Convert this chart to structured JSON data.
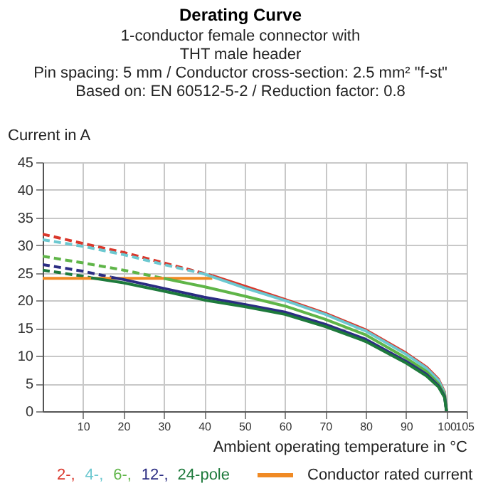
{
  "chart_data": {
    "type": "line",
    "title": "Derating Curve",
    "subtitle": [
      "1-conductor female connector with",
      "THT male header",
      "Pin spacing: 5 mm / Conductor cross-section: 2.5 mm² \"f-st\"",
      "Based on: EN 60512-5-2 / Reduction factor: 0.8"
    ],
    "xlabel": "Ambient operating temperature in °C",
    "ylabel": "Current in A",
    "xlim": [
      0,
      105
    ],
    "xticks": [
      10,
      20,
      30,
      40,
      50,
      60,
      70,
      80,
      90,
      100,
      105
    ],
    "ylim": [
      0,
      45
    ],
    "yticks": [
      0,
      5,
      10,
      15,
      20,
      25,
      30,
      35,
      40,
      45
    ],
    "grid": true,
    "legend": "bottom",
    "marker": "none",
    "series": [
      {
        "color": "#d9372b",
        "line_style": "dashed",
        "x": [
          0,
          10,
          20,
          30,
          42
        ],
        "values": [
          32,
          30.3,
          28.7,
          26.8,
          24.5
        ]
      },
      {
        "color": "#6cc8d0",
        "line_style": "dashed",
        "x": [
          0,
          10,
          20,
          30,
          40
        ],
        "values": [
          31,
          29.8,
          28.3,
          26.5,
          24.8
        ]
      },
      {
        "color": "#5fb548",
        "line_style": "dashed",
        "x": [
          0,
          10,
          20,
          30
        ],
        "values": [
          28,
          26.8,
          25.5,
          24
        ]
      },
      {
        "color": "#2b2c82",
        "line_style": "dashed",
        "x": [
          0,
          10,
          17
        ],
        "values": [
          26.5,
          25.3,
          24.2
        ]
      },
      {
        "color": "#1e7a3c",
        "line_style": "dashed",
        "x": [
          0,
          10,
          12
        ],
        "values": [
          25.5,
          24.4,
          24.1
        ]
      },
      {
        "name": "Conductor rated current",
        "color": "#f08a24",
        "line_style": "solid",
        "x": [
          0,
          42
        ],
        "values": [
          24,
          24
        ]
      },
      {
        "name": "2-,",
        "color": "#d9372b",
        "line_style": "solid",
        "x": [
          42,
          50,
          60,
          70,
          80,
          90,
          95,
          98,
          99.5,
          100
        ],
        "values": [
          24.5,
          22.6,
          20.2,
          17.7,
          14.7,
          10.5,
          8,
          5.8,
          3.5,
          0
        ]
      },
      {
        "name": "4-,",
        "color": "#6cc8d0",
        "line_style": "solid",
        "x": [
          40,
          50,
          60,
          70,
          80,
          90,
          95,
          98,
          99.5,
          100
        ],
        "values": [
          24.8,
          22.3,
          20,
          17.5,
          14.5,
          10.3,
          7.8,
          5.6,
          3.3,
          0
        ]
      },
      {
        "name": "6-,",
        "color": "#5fb548",
        "line_style": "solid",
        "x": [
          30,
          40,
          50,
          60,
          70,
          80,
          90,
          95,
          98,
          99.5,
          100
        ],
        "values": [
          24,
          22.5,
          20.8,
          19,
          16.6,
          13.8,
          9.6,
          7.2,
          5,
          3,
          0
        ]
      },
      {
        "name": "12-,",
        "color": "#2b2c82",
        "line_style": "solid",
        "x": [
          17,
          20,
          30,
          40,
          50,
          60,
          70,
          80,
          90,
          95,
          98,
          99.5,
          100
        ],
        "values": [
          24.2,
          23.8,
          22.2,
          20.6,
          19.3,
          17.9,
          15.7,
          13,
          9,
          6.7,
          4.6,
          2.7,
          0
        ]
      },
      {
        "name": "24-pole",
        "color": "#1e7a3c",
        "line_style": "solid",
        "x": [
          12,
          20,
          30,
          40,
          50,
          60,
          70,
          80,
          90,
          95,
          98,
          99.5,
          100
        ],
        "values": [
          24.1,
          23.2,
          21.7,
          20.1,
          18.9,
          17.5,
          15.3,
          12.6,
          8.7,
          6.4,
          4.4,
          2.5,
          0
        ]
      }
    ]
  }
}
